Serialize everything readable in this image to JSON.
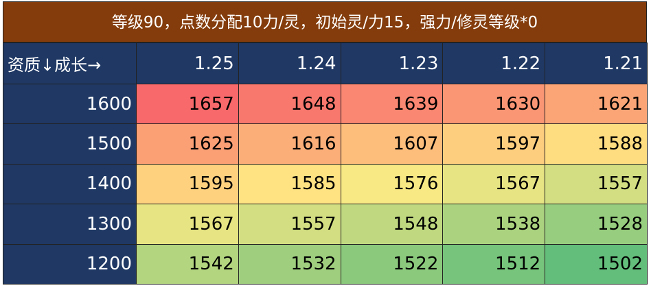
{
  "title": "等级90，点数分配10力/灵，初始灵/力15，强力/修灵等级*0",
  "table": {
    "corner": "资质↓成长→",
    "columns": [
      1.25,
      1.24,
      1.23,
      1.22,
      1.21
    ],
    "rows": [
      {
        "label": 1600,
        "values": [
          1657,
          1648,
          1639,
          1630,
          1621
        ]
      },
      {
        "label": 1500,
        "values": [
          1625,
          1616,
          1607,
          1597,
          1588
        ]
      },
      {
        "label": 1400,
        "values": [
          1595,
          1585,
          1576,
          1567,
          1557
        ]
      },
      {
        "label": 1300,
        "values": [
          1567,
          1557,
          1548,
          1538,
          1528
        ]
      },
      {
        "label": 1200,
        "values": [
          1542,
          1532,
          1522,
          1512,
          1502
        ]
      }
    ]
  }
}
